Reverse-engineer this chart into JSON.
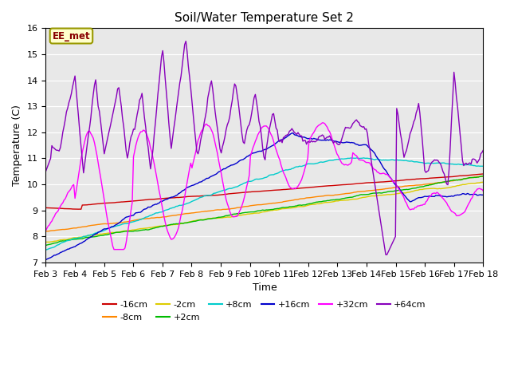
{
  "title": "Soil/Water Temperature Set 2",
  "xlabel": "Time",
  "ylabel": "Temperature (C)",
  "ylim": [
    7.0,
    16.0
  ],
  "yticks": [
    7.0,
    8.0,
    9.0,
    10.0,
    11.0,
    12.0,
    13.0,
    14.0,
    15.0,
    16.0
  ],
  "xtick_labels": [
    "Feb 3",
    "Feb 4",
    "Feb 5",
    "Feb 6",
    "Feb 7",
    "Feb 8",
    "Feb 9",
    "Feb 10",
    "Feb 11",
    "Feb 12",
    "Feb 13",
    "Feb 14",
    "Feb 15",
    "Feb 16",
    "Feb 17",
    "Feb 18"
  ],
  "series_colors": {
    "-16cm": "#cc0000",
    "-8cm": "#ff8800",
    "-2cm": "#ddcc00",
    "+2cm": "#00bb00",
    "+8cm": "#00cccc",
    "+16cm": "#0000cc",
    "+32cm": "#ff00ff",
    "+64cm": "#8800bb"
  },
  "annotation_text": "EE_met",
  "annotation_bg": "#ffffcc",
  "annotation_border": "#999900",
  "fig_bg": "#ffffff",
  "plot_bg": "#e8e8e8",
  "grid_color": "#ffffff"
}
